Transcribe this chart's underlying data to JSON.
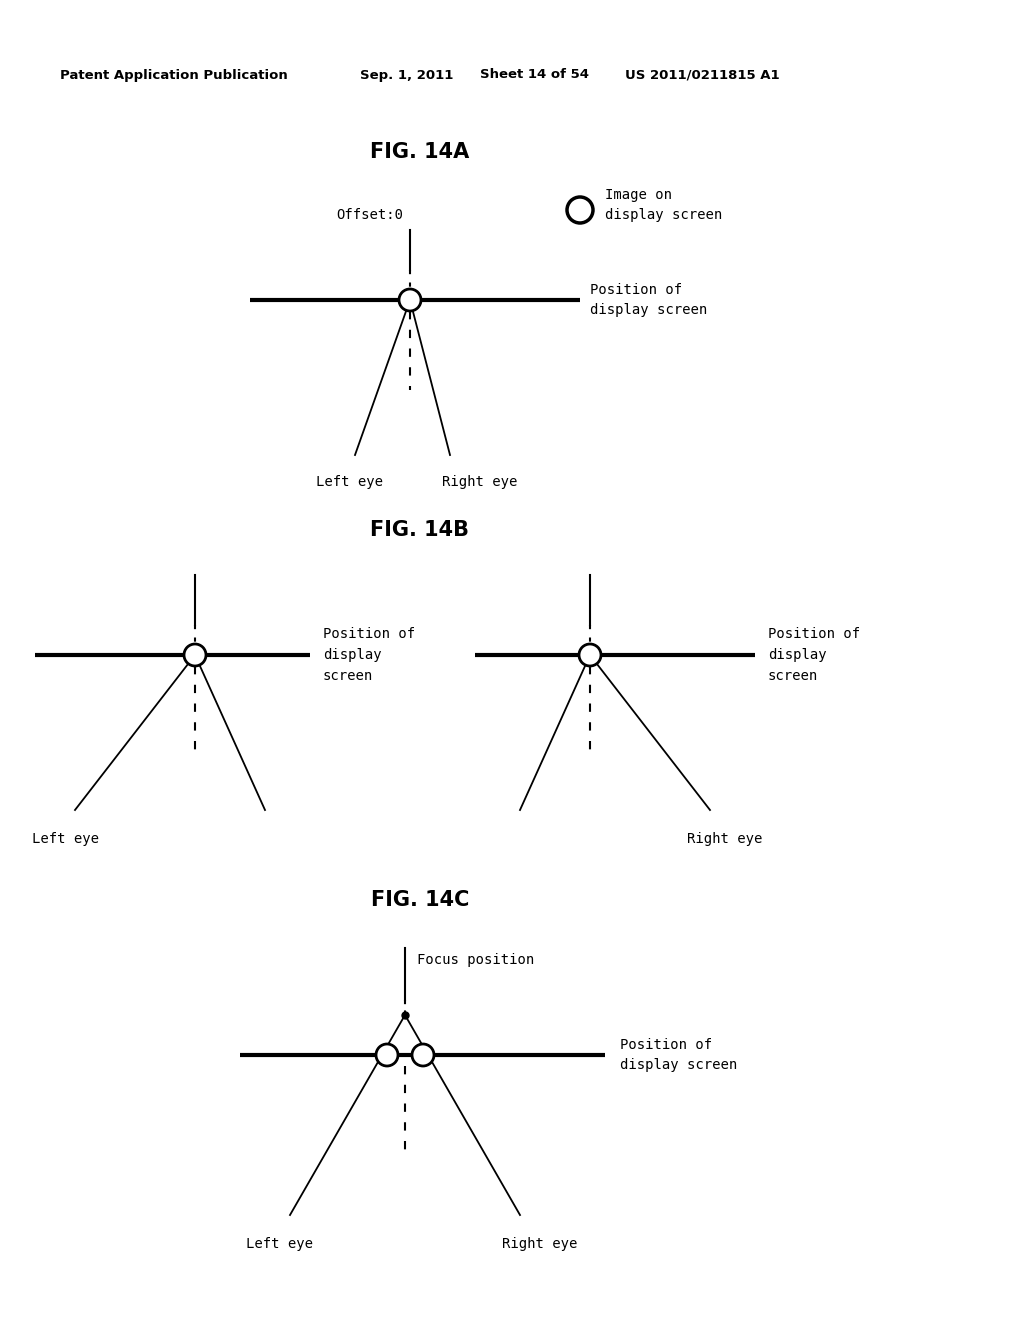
{
  "bg_color": "#ffffff",
  "header_text": "Patent Application Publication",
  "header_date": "Sep. 1, 2011",
  "header_sheet": "Sheet 14 of 54",
  "header_patent": "US 2011/0211815 A1",
  "fig14a_title": "FIG. 14A",
  "fig14b_title": "FIG. 14B",
  "fig14c_title": "FIG. 14C",
  "label_offset0": "Offset:0",
  "label_image_on": "Image on\ndisplay screen",
  "label_pos_display": "Position of\ndisplay screen",
  "label_pos_display3": "Position of\ndisplay\nscreen",
  "label_left_eye": "Left eye",
  "label_right_eye": "Right eye",
  "label_focus_position": "Focus position",
  "text_color": "#000000",
  "line_color": "#000000",
  "lw_thick": 3.0,
  "lw_thin": 1.3,
  "lw_dash": 1.5,
  "small_circle_r": 11,
  "legend_circle_r": 13
}
